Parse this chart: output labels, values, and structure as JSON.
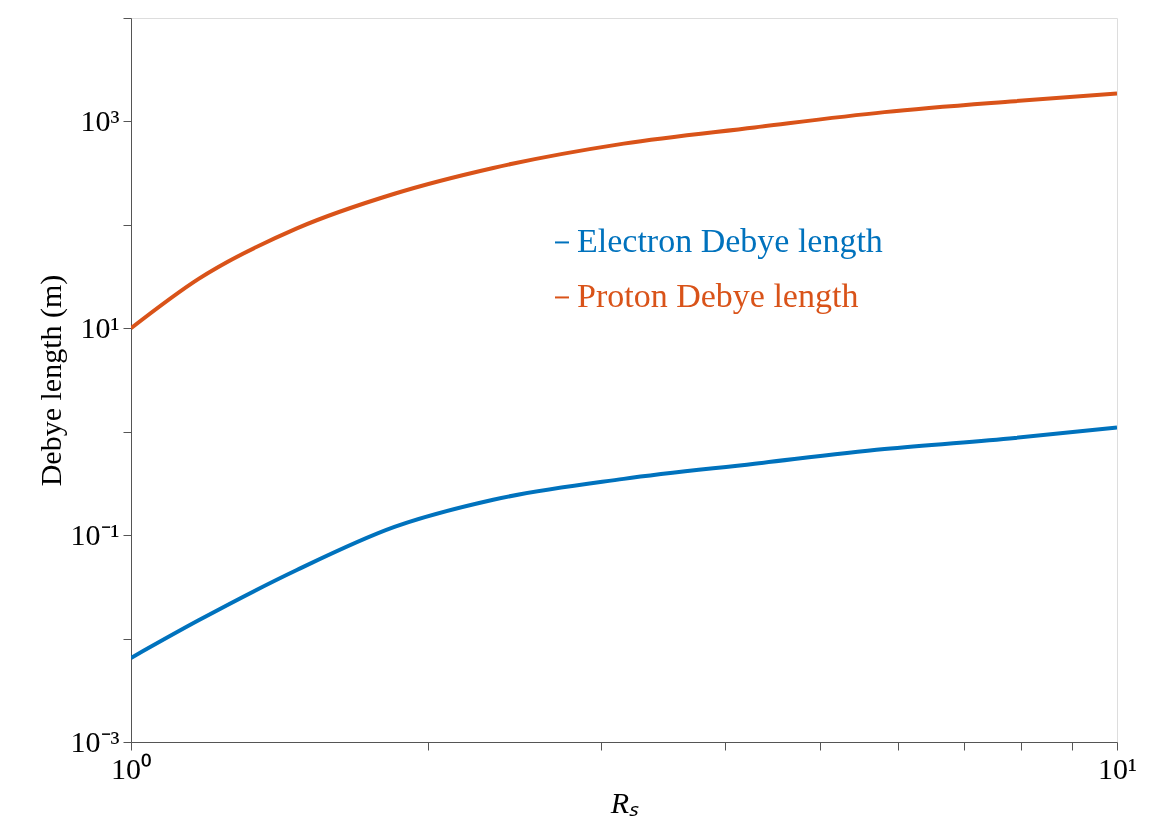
{
  "chart_data": {
    "type": "line",
    "xlabel": "Rₛ",
    "ylabel": "Debye length (m)",
    "log": "xy",
    "grid": false,
    "legend": "top right",
    "line_style": "solid",
    "marker": "none",
    "xlim": [
      1,
      10
    ],
    "ylim": [
      0.001,
      10000
    ],
    "xticks": [
      {
        "value": 1,
        "label": "10⁰"
      },
      {
        "value": 2,
        "label": null
      },
      {
        "value": 3,
        "label": null
      },
      {
        "value": 4,
        "label": null
      },
      {
        "value": 5,
        "label": null
      },
      {
        "value": 6,
        "label": null
      },
      {
        "value": 7,
        "label": null
      },
      {
        "value": 8,
        "label": null
      },
      {
        "value": 9,
        "label": null
      },
      {
        "value": 10,
        "label": "10¹"
      }
    ],
    "yticks": [
      {
        "value": 0.001,
        "label": "10⁻³"
      },
      {
        "value": 0.01,
        "label": null
      },
      {
        "value": 0.1,
        "label": "10⁻¹"
      },
      {
        "value": 1,
        "label": null
      },
      {
        "value": 10,
        "label": "10¹"
      },
      {
        "value": 100,
        "label": null
      },
      {
        "value": 1000,
        "label": "10³"
      },
      {
        "value": 10000,
        "label": null
      }
    ],
    "x": [
      1,
      1.171,
      1.473,
      1.85,
      2.33,
      3.16,
      4.29,
      5.81,
      7.88,
      10
    ],
    "series": [
      {
        "name": "Electron Debye length",
        "color": "#0072bd",
        "values": [
          0.0065,
          0.015,
          0.046,
          0.12,
          0.22,
          0.35,
          0.49,
          0.68,
          0.87,
          1.1
        ]
      },
      {
        "name": "Proton Debye length",
        "color": "#d95319",
        "values": [
          10,
          30,
          92.5,
          200,
          355,
          610,
          875,
          1230,
          1570,
          1860
        ]
      }
    ]
  }
}
